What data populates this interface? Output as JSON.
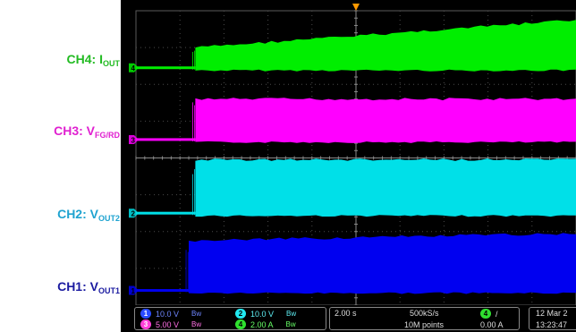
{
  "labels": {
    "ch4": {
      "main": "CH4: I",
      "sub": "OUT"
    },
    "ch3": {
      "main": "CH3: V",
      "sub": "FG/RD"
    },
    "ch2": {
      "main": "CH2: V",
      "sub": "OUT2"
    },
    "ch1": {
      "main": "CH1: V",
      "sub": "OUT1"
    }
  },
  "colors": {
    "ch1": "#0000f0",
    "ch2": "#00e0e8",
    "ch3": "#ff00ff",
    "ch4": "#00ee00",
    "label_ch1": "#1a1aa0",
    "label_ch2": "#1fa3d0",
    "label_ch3": "#e020d0",
    "label_ch4": "#22bb22",
    "trigger": "#ff9900"
  },
  "status": {
    "ch1": {
      "num": "1",
      "scale": "10.0 V",
      "bw": "Bw"
    },
    "ch2": {
      "num": "2",
      "scale": "10.0 V",
      "bw": "Bw"
    },
    "ch3": {
      "num": "3",
      "scale": "5.00 V",
      "bw": "Bw"
    },
    "ch4": {
      "num": "4",
      "scale": "2.00 A",
      "bw": "Bw"
    },
    "timebase": "2.00 s",
    "sample_rate": "500kS/s",
    "record_length": "10M points",
    "trigger_channel": "4",
    "trigger_slope": "/",
    "trigger_level": "0.00 A",
    "date": "12 Mar 2",
    "time": "13:23:47"
  },
  "chart_data": {
    "type": "line",
    "title": "",
    "xlabel": "",
    "ylabel": "",
    "x_unit": "s",
    "x_div": 2.0,
    "divisions_x": 10,
    "divisions_y": 8,
    "grid": true,
    "trigger_x_div": 5,
    "series": [
      {
        "name": "CH4: IOUT",
        "channel": 4,
        "color": "#00ee00",
        "marker": "4",
        "baseline_div": 1.55,
        "onset_div": 1.35,
        "envelope_start_div": 0.55,
        "envelope_end_div": 1.3
      },
      {
        "name": "CH3: VFG/RD",
        "channel": 3,
        "color": "#ff00ff",
        "marker": "3",
        "baseline_div": 3.5,
        "onset_div": 1.35,
        "envelope_start_div": 1.1,
        "envelope_end_div": 1.1
      },
      {
        "name": "CH2: VOUT2",
        "channel": 2,
        "color": "#00e0e8",
        "marker": "2",
        "baseline_div": 5.5,
        "onset_div": 1.35,
        "envelope_start_div": 1.45,
        "envelope_end_div": 1.45
      },
      {
        "name": "CH1: VOUT1",
        "channel": 1,
        "color": "#0000f0",
        "marker": "1",
        "baseline_div": 7.6,
        "onset_div": 1.2,
        "envelope_start_div": 1.35,
        "envelope_end_div": 1.55
      }
    ]
  }
}
